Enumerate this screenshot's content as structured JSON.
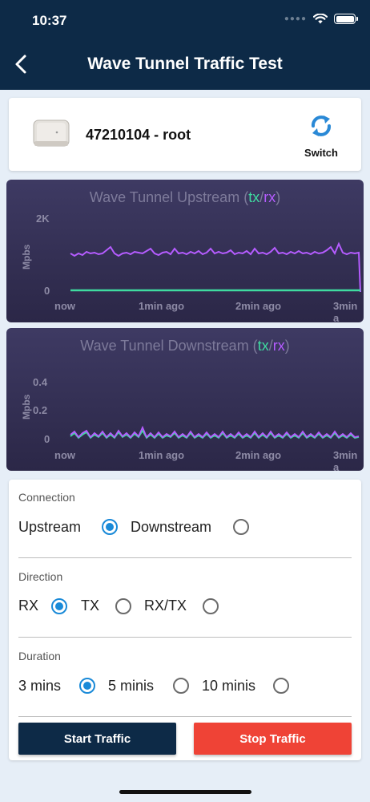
{
  "status": {
    "time": "10:37"
  },
  "header": {
    "title": "Wave Tunnel Traffic Test"
  },
  "device": {
    "name": "47210104 - root",
    "switch_label": "Switch"
  },
  "upstream_chart": {
    "title": "Wave Tunnel Upstream (",
    "tx": "tx",
    "slash": "/",
    "rx": "rx",
    "close": ")",
    "ylabel": "Mpbs",
    "yticks": [
      "2K",
      "0"
    ],
    "xticks": [
      "now",
      "1min ago",
      "2min ago",
      "3min a"
    ]
  },
  "downstream_chart": {
    "title": "Wave Tunnel Downstream (",
    "tx": "tx",
    "slash": "/",
    "rx": "rx",
    "close": ")",
    "ylabel": "Mpbs",
    "yticks": [
      "0.4",
      "0.2",
      "0"
    ],
    "xticks": [
      "now",
      "1min ago",
      "2min ago",
      "3min a"
    ]
  },
  "form": {
    "connection_label": "Connection",
    "connection_options": [
      "Upstream",
      "Downstream"
    ],
    "direction_label": "Direction",
    "direction_options": [
      "RX",
      "TX",
      "RX/TX"
    ],
    "duration_label": "Duration",
    "duration_options": [
      "3 mins",
      "5 minis",
      "10 minis"
    ],
    "start_label": "Start Traffic",
    "stop_label": "Stop Traffic"
  },
  "colors": {
    "tx": "#3fdba0",
    "rx": "#b55cff",
    "accent": "#1a8ad8",
    "stop": "#ef4336",
    "navy": "#0d2a47"
  }
}
